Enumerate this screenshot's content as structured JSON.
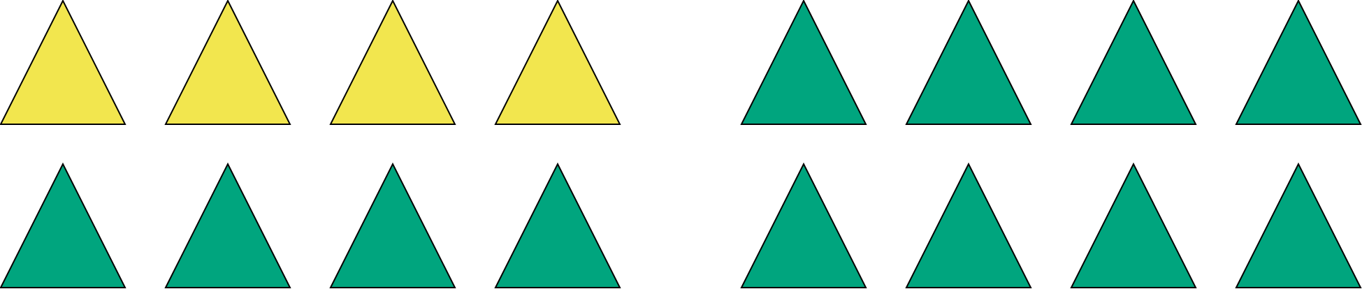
{
  "colors": {
    "yellow": "#F2E64E",
    "green": "#00A57E",
    "outline": "#000000",
    "background": "#FFFFFF"
  },
  "groups": [
    {
      "name": "left-group",
      "rows": [
        [
          "yellow",
          "yellow",
          "yellow",
          "yellow"
        ],
        [
          "green",
          "green",
          "green",
          "green"
        ]
      ]
    },
    {
      "name": "right-group",
      "rows": [
        [
          "green",
          "green",
          "green",
          "green"
        ],
        [
          "green",
          "green",
          "green",
          "green"
        ]
      ]
    }
  ]
}
